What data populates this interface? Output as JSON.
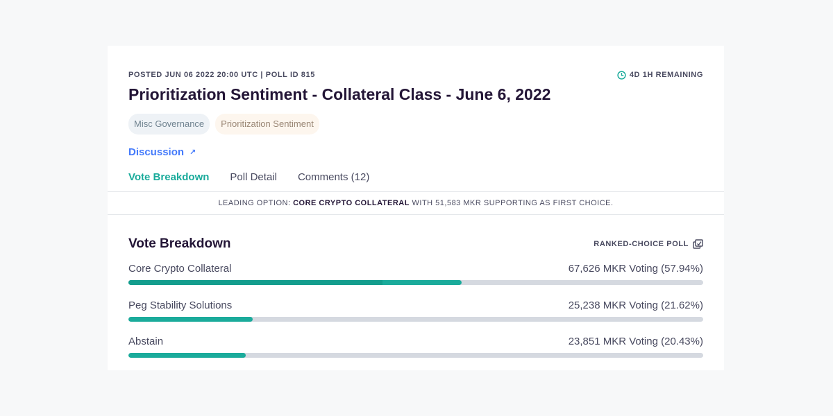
{
  "header": {
    "meta": "POSTED JUN 06 2022 20:00 UTC | POLL ID 815",
    "remaining": "4D 1H REMAINING",
    "title": "Prioritization Sentiment - Collateral Class - June 6, 2022"
  },
  "tags": [
    "Misc Governance",
    "Prioritization Sentiment"
  ],
  "discussion": {
    "label": "Discussion",
    "icon": "external-link-icon"
  },
  "tabs": [
    {
      "label": "Vote Breakdown",
      "active": true
    },
    {
      "label": "Poll Detail",
      "active": false
    },
    {
      "label": "Comments (12)",
      "active": false
    }
  ],
  "leading": {
    "prefix": "LEADING OPTION:",
    "option": "CORE CRYPTO COLLATERAL",
    "suffix": "WITH 51,583 MKR SUPPORTING AS FIRST CHOICE."
  },
  "vote_breakdown": {
    "title": "Vote Breakdown",
    "poll_type": "RANKED-CHOICE POLL",
    "options": [
      {
        "name": "Core Crypto Collateral",
        "result": "67,626 MKR Voting (57.94%)",
        "percent": 57.94,
        "first_choice_percent": 44.2
      },
      {
        "name": "Peg Stability Solutions",
        "result": "25,238 MKR Voting (21.62%)",
        "percent": 21.62,
        "first_choice_percent": 21.62
      },
      {
        "name": "Abstain",
        "result": "23,851 MKR Voting (20.43%)",
        "percent": 20.43,
        "first_choice_percent": 20.43
      }
    ]
  },
  "colors": {
    "accent": "#1aab9b",
    "link": "#447afb",
    "track": "#d5d9e0"
  }
}
